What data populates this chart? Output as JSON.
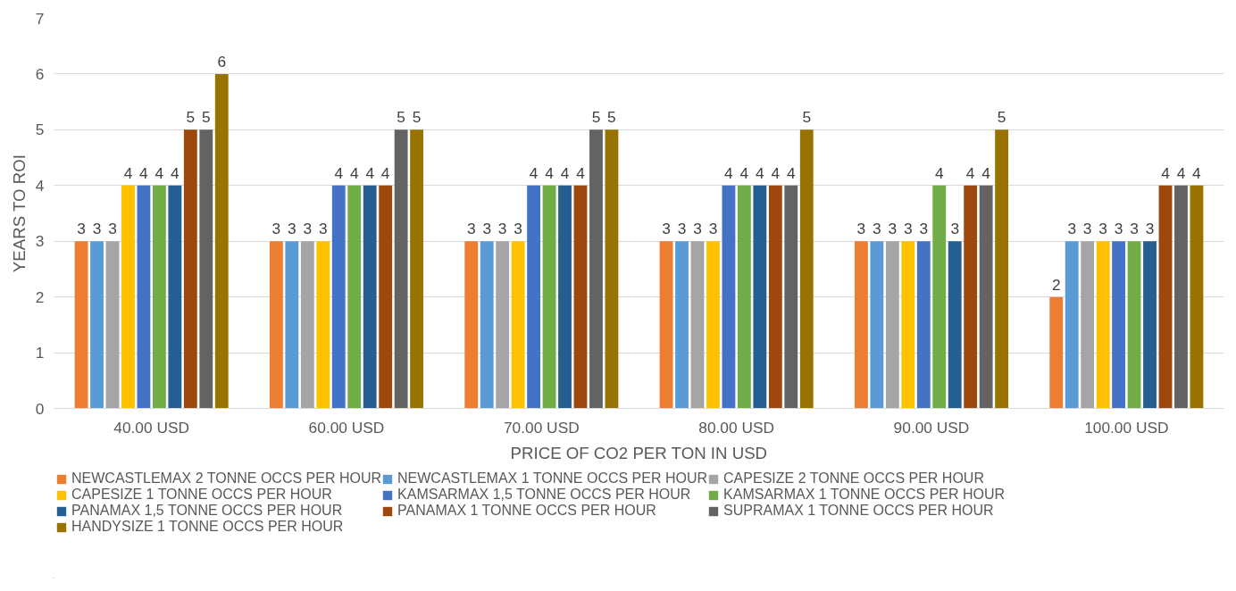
{
  "chart_data": {
    "type": "bar",
    "xlabel": "PRICE OF CO2 PER TON IN USD",
    "ylabel": "YEARS TO ROI",
    "categories": [
      "40.00 USD",
      "60.00 USD",
      "70.00 USD",
      "80.00 USD",
      "90.00 USD",
      "100.00 USD"
    ],
    "series": [
      {
        "name": "NEWCASTLEMAX 2 TONNE OCCS PER HOUR",
        "color": "#ed7d31",
        "values": [
          3,
          3,
          3,
          3,
          3,
          2
        ]
      },
      {
        "name": "NEWCASTLEMAX 1 TONNE OCCS PER HOUR",
        "color": "#5b9bd5",
        "values": [
          3,
          3,
          3,
          3,
          3,
          3
        ]
      },
      {
        "name": "CAPESIZE 2 TONNE OCCS PER HOUR",
        "color": "#a5a5a5",
        "values": [
          3,
          3,
          3,
          3,
          3,
          3
        ]
      },
      {
        "name": "CAPESIZE 1 TONNE OCCS PER HOUR",
        "color": "#ffc000",
        "values": [
          4,
          3,
          3,
          3,
          3,
          3
        ]
      },
      {
        "name": "KAMSARMAX 1,5 TONNE OCCS PER HOUR",
        "color": "#4472c4",
        "values": [
          4,
          4,
          4,
          4,
          3,
          3
        ]
      },
      {
        "name": "KAMSARMAX 1 TONNE OCCS PER HOUR",
        "color": "#70ad47",
        "values": [
          4,
          4,
          4,
          4,
          4,
          3
        ]
      },
      {
        "name": "PANAMAX 1,5 TONNE OCCS PER HOUR",
        "color": "#255e91",
        "values": [
          4,
          4,
          4,
          4,
          3,
          3
        ]
      },
      {
        "name": "PANAMAX 1 TONNE OCCS PER HOUR",
        "color": "#9e480e",
        "values": [
          5,
          4,
          4,
          4,
          4,
          4
        ]
      },
      {
        "name": "SUPRAMAX 1 TONNE OCCS PER HOUR",
        "color": "#636363",
        "values": [
          5,
          5,
          5,
          4,
          4,
          4
        ]
      },
      {
        "name": "HANDYSIZE 1 TONNE OCCS PER HOUR",
        "color": "#997300",
        "values": [
          6,
          5,
          5,
          5,
          5,
          4
        ]
      }
    ],
    "ylim": [
      0,
      7
    ],
    "yticks": [
      0,
      1,
      2,
      3,
      4,
      5,
      6,
      7
    ],
    "grid": "y",
    "legend": "bottom",
    "data_labels": true
  }
}
